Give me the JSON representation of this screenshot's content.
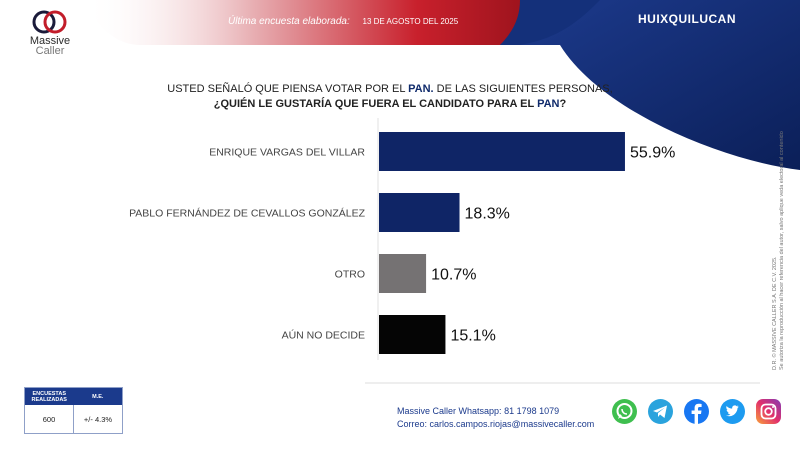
{
  "header": {
    "survey_label": "Última encuesta elaborada:",
    "survey_date": "13 DE AGOSTO DEL 2025",
    "region": "HUIXQUILUCAN"
  },
  "brand": {
    "name_line1": "Massive",
    "name_line2": "Caller",
    "colors": {
      "red": "#c21d2a",
      "navy": "#0f2a6b"
    }
  },
  "question": {
    "line1_prefix": "USTED SEÑALÓ QUE PIENSA VOTAR POR EL ",
    "line1_party": "PAN.",
    "line1_suffix": " DE LAS SIGUIENTES PERSONAS,",
    "line2_prefix": "¿QUIÉN LE GUSTARÍA QUE FUERA EL CANDIDATO PARA EL ",
    "line2_party": "PAN",
    "line2_suffix": "?"
  },
  "chart_data": {
    "type": "bar",
    "orientation": "horizontal",
    "categories": [
      "ENRIQUE VARGAS DEL VILLAR",
      "PABLO FERNÁNDEZ DE CEVALLOS GONZÁLEZ",
      "OTRO",
      "AÚN NO DECIDE"
    ],
    "values": [
      55.9,
      18.3,
      10.7,
      15.1
    ],
    "value_labels": [
      "55.9%",
      "18.3%",
      "10.7%",
      "15.1%"
    ],
    "colors": [
      "#0f2566",
      "#0f2566",
      "#757273",
      "#050505"
    ],
    "xlim": [
      0,
      100
    ],
    "title": "",
    "xlabel": "",
    "ylabel": "",
    "grid": false,
    "legend": "none"
  },
  "stats": {
    "col1_header": "ENCUESTAS REALIZADAS",
    "col2_header": "M.E.",
    "col1_value": "600",
    "col2_value": "+/- 4.3%"
  },
  "contact": {
    "whatsapp_label": "Massive Caller Whatsapp:",
    "whatsapp_value": "81 1798 1079",
    "email_label": "Correo:",
    "email_value": "carlos.campos.riojas@massivecaller.com"
  },
  "side_note": {
    "line1": "D.R. © MASSIVE CALLER S.A. DE C.V. 2025.",
    "line2": "Se autoriza la reproducción al hacer referencia del autor, salvo aplique veda electoral al contenido"
  },
  "social": {
    "icons": [
      "whatsapp-icon",
      "telegram-icon",
      "facebook-icon",
      "twitter-icon",
      "instagram-icon"
    ]
  }
}
